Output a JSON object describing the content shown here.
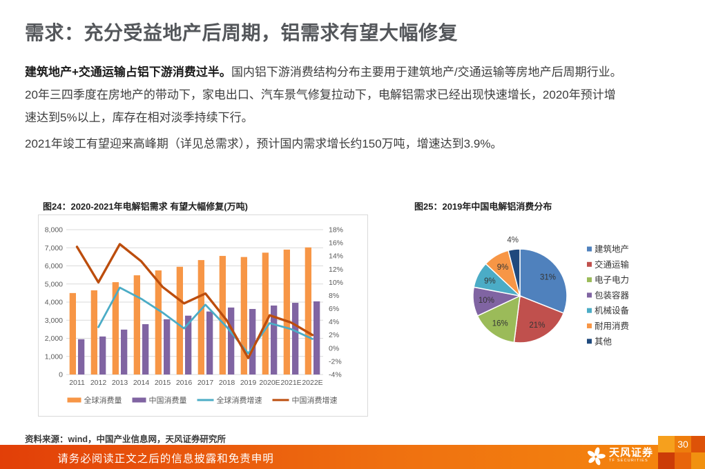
{
  "slide": {
    "title": "需求：充分受益地产后周期，铝需求有望大幅修复",
    "body": {
      "lead_bold": "建筑地产+交通运输占铝下游消费过半。",
      "lead_rest": "国内铝下游消费结构分布主要用于建筑地产/交通运输等房地产后周期行业。",
      "para2_line1": "20年三四季度在房地产的带动下，家电出口、汽车景气修复拉动下，电解铝需求已经出现快速增长，2020年预计增",
      "para2_line2": "速达到5%以上，库存在相对淡季持续下行。",
      "para3": "2021年竣工有望迎来高峰期（详见总需求），预计国内需求增长约150万吨，增速达到3.9%。"
    },
    "source_label": "资料来源：",
    "source_text": "wind，中国产业信息网，天风证券研究所"
  },
  "footer": {
    "disclaimer": "请务必阅读正文之后的信息披露和免责申明",
    "brand_cn": "天风证券",
    "brand_en": "TF SECURITIES",
    "page_number": "30"
  },
  "colors": {
    "title_text": "#54575b",
    "footer_gradient_left": "#e23f08",
    "footer_gradient_right": "#f5880e",
    "grid_line": "#d9d9d9",
    "axis_text": "#595959"
  },
  "chart_data": [
    {
      "id": "fig24",
      "type": "bar",
      "subtype": "combo-bar-line-dual-axis",
      "title": "图24：2020-2021年电解铝需求 有望大幅修复(万吨)",
      "categories": [
        "2011",
        "2012",
        "2013",
        "2014",
        "2015",
        "2016",
        "2017",
        "2018",
        "2019",
        "2020E",
        "2021E",
        "2022E"
      ],
      "series": [
        {
          "name": "全球消费量",
          "kind": "bar",
          "axis": "left",
          "color": "#f79646",
          "values": [
            4500,
            4650,
            5100,
            5480,
            5750,
            5950,
            6320,
            6550,
            6490,
            6730,
            6900,
            7020
          ]
        },
        {
          "name": "中国消费量",
          "kind": "bar",
          "axis": "left",
          "color": "#8064a2",
          "values": [
            1950,
            2100,
            2480,
            2780,
            3050,
            3250,
            3480,
            3700,
            3620,
            3810,
            3960,
            4040
          ]
        },
        {
          "name": "全球消费增速",
          "kind": "line",
          "axis": "right",
          "color": "#4bacc6",
          "values": [
            null,
            3.2,
            9.2,
            7.5,
            5.4,
            3.0,
            6.6,
            3.2,
            -0.8,
            3.8,
            2.9,
            1.4
          ]
        },
        {
          "name": "中国消费增速",
          "kind": "line",
          "axis": "right",
          "color": "#bc4d0d",
          "values": [
            15.4,
            10.0,
            15.8,
            13.2,
            9.3,
            6.8,
            8.3,
            4.2,
            -1.5,
            5.0,
            3.9,
            2.0
          ]
        }
      ],
      "left_axis": {
        "min": 0,
        "max": 8000,
        "step": 1000,
        "tick_labels": [
          "8,000",
          "7,000",
          "6,000",
          "5,000",
          "4,000",
          "3,000",
          "2,000",
          "1,000",
          "0"
        ]
      },
      "right_axis": {
        "min": -4,
        "max": 18,
        "step": 2,
        "tick_labels": [
          "18%",
          "16%",
          "14%",
          "12%",
          "10%",
          "8%",
          "6%",
          "4%",
          "2%",
          "0%",
          "-2%",
          "-4%"
        ]
      },
      "grid": true,
      "legend_position": "bottom"
    },
    {
      "id": "fig25",
      "type": "pie",
      "title": "图25：2019年中国电解铝消费分布",
      "slices": [
        {
          "label": "建筑地产",
          "value": 31,
          "pct_label": "31%",
          "color": "#4f81bd"
        },
        {
          "label": "交通运输",
          "value": 21,
          "pct_label": "21%",
          "color": "#c0504d"
        },
        {
          "label": "电子电力",
          "value": 16,
          "pct_label": "16%",
          "color": "#9bbb59"
        },
        {
          "label": "包装容器",
          "value": 10,
          "pct_label": "10%",
          "color": "#8064a2"
        },
        {
          "label": "机械设备",
          "value": 9,
          "pct_label": "9%",
          "color": "#4bacc6"
        },
        {
          "label": "耐用消费",
          "value": 9,
          "pct_label": "9%",
          "color": "#f79646"
        },
        {
          "label": "其他",
          "value": 4,
          "pct_label": "4%",
          "color": "#1f497d"
        }
      ],
      "start_angle_deg": 0,
      "direction": "clockwise",
      "legend_position": "right"
    }
  ]
}
